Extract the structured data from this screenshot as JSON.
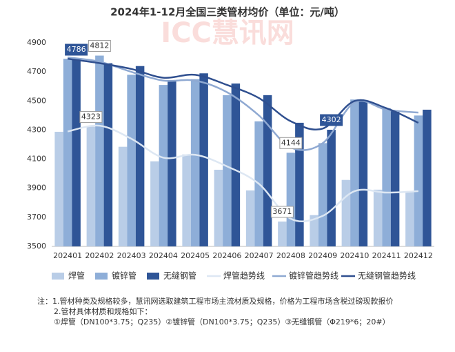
{
  "chart_data": {
    "type": "bar_line",
    "title": "2024年1-12月全国三类管材均价（单位：元/吨）",
    "watermark": "ICC慧讯网",
    "categories": [
      "202401",
      "202402",
      "202403",
      "202404",
      "202405",
      "202406",
      "202407",
      "202408",
      "202409",
      "202410",
      "202411",
      "202412"
    ],
    "series": [
      {
        "name": "焊管",
        "kind": "bar",
        "color": "#b9cde7",
        "values": [
          4288,
          4323,
          4185,
          4085,
          4132,
          4027,
          3885,
          3671,
          3715,
          3957,
          3890,
          3880
        ],
        "value_labels": [
          null,
          "4323",
          null,
          null,
          null,
          null,
          null,
          "3671",
          null,
          null,
          null,
          null
        ]
      },
      {
        "name": "镀锌管",
        "kind": "bar",
        "color": "#8eaed8",
        "values": [
          4790,
          4812,
          4680,
          4610,
          4650,
          4540,
          4360,
          4144,
          4210,
          4510,
          4450,
          4400
        ],
        "value_labels": [
          null,
          "4812",
          null,
          null,
          null,
          null,
          null,
          "4144",
          null,
          null,
          null,
          null
        ]
      },
      {
        "name": "无缝钢管",
        "kind": "bar",
        "color": "#2f5597",
        "values": [
          4786,
          4760,
          4740,
          4640,
          4690,
          4620,
          4540,
          4350,
          4302,
          4500,
          4430,
          4440
        ],
        "value_labels": [
          "4786",
          null,
          null,
          null,
          null,
          null,
          null,
          null,
          "4302",
          null,
          null,
          null
        ]
      },
      {
        "name": "焊管趋势线",
        "kind": "line",
        "color": "#dde7f3",
        "values": [
          4290,
          4330,
          4240,
          4110,
          4130,
          4050,
          3930,
          3690,
          3710,
          3880,
          3870,
          3880
        ]
      },
      {
        "name": "镀锌管趋势线",
        "kind": "line",
        "color": "#8fa9d2",
        "values": [
          4800,
          4770,
          4700,
          4640,
          4640,
          4560,
          4400,
          4180,
          4210,
          4490,
          4440,
          4420
        ]
      },
      {
        "name": "无缝钢管趋势线",
        "kind": "line",
        "color": "#2f4f8f",
        "values": [
          4790,
          4760,
          4720,
          4660,
          4680,
          4610,
          4520,
          4360,
          4310,
          4500,
          4450,
          4350
        ]
      }
    ],
    "ylim": [
      3500,
      4900
    ],
    "yticks": [
      3500,
      3700,
      3900,
      4100,
      4300,
      4500,
      4700,
      4900
    ],
    "grid": false,
    "notes": [
      "注：1.管材种类及规格较多，慧讯网选取建筑工程市场主流材质及规格，价格为工程市场含税过磅现款报价",
      "2.管材具体材质和规格如下：",
      "①焊管（DN100*3.75；Q235）②镀锌管（DN100*3.75；Q235）③无缝钢管（Φ219*6；20#）"
    ]
  }
}
